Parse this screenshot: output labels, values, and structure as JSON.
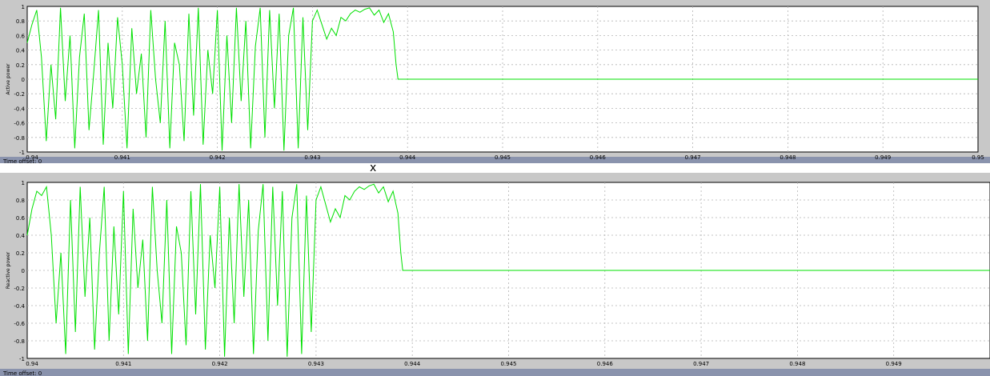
{
  "colors": {
    "frame_bg": "#c8c8c8",
    "axes_bg": "#ffffff",
    "grid": "#b4b4b4",
    "signal": "#00e000",
    "tick_text": "#000000",
    "status_bar": "#8a93ad"
  },
  "center_mark": "x",
  "chart_data": [
    {
      "type": "line",
      "ylabel": "Active power",
      "offset_label": "Time offset: 0",
      "xlim": [
        0.94,
        0.95
      ],
      "ylim": [
        -1,
        1
      ],
      "grid": true,
      "x_ticks": [
        "0.94",
        "0.941",
        "0.942",
        "0.943",
        "0.944",
        "0.945",
        "0.946",
        "0.947",
        "0.948",
        "0.949",
        "0.95"
      ],
      "y_ticks": [
        "1",
        "0.8",
        "0.6",
        "0.4",
        "0.2",
        "0",
        "-0.2",
        "-0.4",
        "-0.6",
        "-0.8",
        "-1"
      ],
      "series": [
        {
          "color": "#00e000",
          "x": [
            0.94,
            0.94005,
            0.9401,
            0.94015,
            0.9402,
            0.94025,
            0.9403,
            0.94035,
            0.9404,
            0.94045,
            0.9405,
            0.94055,
            0.9406,
            0.94065,
            0.9407,
            0.94075,
            0.9408,
            0.94085,
            0.9409,
            0.94095,
            0.941,
            0.94105,
            0.9411,
            0.94115,
            0.9412,
            0.94125,
            0.9413,
            0.94135,
            0.9414,
            0.94145,
            0.9415,
            0.94155,
            0.9416,
            0.94165,
            0.9417,
            0.94175,
            0.9418,
            0.94185,
            0.9419,
            0.94195,
            0.942,
            0.94205,
            0.9421,
            0.94215,
            0.9422,
            0.94225,
            0.9423,
            0.94235,
            0.9424,
            0.94245,
            0.9425,
            0.94255,
            0.9426,
            0.94265,
            0.9427,
            0.94275,
            0.9428,
            0.94285,
            0.9429,
            0.94295,
            0.943,
            0.94305,
            0.9431,
            0.94315,
            0.9432,
            0.94325,
            0.9433,
            0.94335,
            0.9434,
            0.94345,
            0.9435,
            0.94355,
            0.9436,
            0.94365,
            0.9437,
            0.94375,
            0.9438,
            0.94385,
            0.94388,
            0.9439,
            0.945,
            0.946,
            0.947,
            0.948,
            0.949,
            0.95
          ],
          "y": [
            0.5,
            0.75,
            0.95,
            0.3,
            -0.85,
            0.2,
            -0.55,
            0.98,
            -0.3,
            0.6,
            -0.95,
            0.3,
            0.9,
            -0.7,
            0.1,
            0.95,
            -0.9,
            0.5,
            -0.4,
            0.85,
            0.2,
            -0.95,
            0.7,
            -0.2,
            0.35,
            -0.8,
            0.95,
            0.0,
            -0.6,
            0.8,
            -0.95,
            0.5,
            0.2,
            -0.85,
            0.9,
            -0.5,
            0.98,
            -0.9,
            0.4,
            -0.2,
            0.95,
            -0.98,
            0.6,
            -0.6,
            0.98,
            -0.3,
            0.8,
            -0.95,
            0.45,
            0.98,
            -0.8,
            0.95,
            -0.4,
            0.9,
            -0.98,
            0.6,
            0.98,
            -0.95,
            0.85,
            -0.7,
            0.8,
            0.95,
            0.75,
            0.55,
            0.7,
            0.6,
            0.85,
            0.8,
            0.9,
            0.95,
            0.92,
            0.96,
            0.98,
            0.88,
            0.95,
            0.78,
            0.9,
            0.65,
            0.2,
            0.0,
            0.0,
            0.0,
            0.0,
            0.0,
            0.0,
            0.0
          ]
        }
      ]
    },
    {
      "type": "line",
      "ylabel": "Reactive power",
      "offset_label": "Time offset: 0",
      "xlim": [
        0.94,
        0.95
      ],
      "ylim": [
        -1,
        1
      ],
      "grid": true,
      "x_ticks": [
        "0.94",
        "0.941",
        "0.942",
        "0.943",
        "0.944",
        "0.945",
        "0.946",
        "0.947",
        "0.948",
        "0.949"
      ],
      "y_ticks": [
        "1",
        "0.8",
        "0.6",
        "0.4",
        "0.2",
        "0",
        "-0.2",
        "-0.4",
        "-0.6",
        "-0.8",
        "-1"
      ],
      "series": [
        {
          "color": "#00e000",
          "x": [
            0.94,
            0.94005,
            0.9401,
            0.94015,
            0.9402,
            0.94025,
            0.9403,
            0.94035,
            0.9404,
            0.94045,
            0.9405,
            0.94055,
            0.9406,
            0.94065,
            0.9407,
            0.94075,
            0.9408,
            0.94085,
            0.9409,
            0.94095,
            0.941,
            0.94105,
            0.9411,
            0.94115,
            0.9412,
            0.94125,
            0.9413,
            0.94135,
            0.9414,
            0.94145,
            0.9415,
            0.94155,
            0.9416,
            0.94165,
            0.9417,
            0.94175,
            0.9418,
            0.94185,
            0.9419,
            0.94195,
            0.942,
            0.94205,
            0.9421,
            0.94215,
            0.9422,
            0.94225,
            0.9423,
            0.94235,
            0.9424,
            0.94245,
            0.9425,
            0.94255,
            0.9426,
            0.94265,
            0.9427,
            0.94275,
            0.9428,
            0.94285,
            0.9429,
            0.94295,
            0.943,
            0.94305,
            0.9431,
            0.94315,
            0.9432,
            0.94325,
            0.9433,
            0.94335,
            0.9434,
            0.94345,
            0.9435,
            0.94355,
            0.9436,
            0.94365,
            0.9437,
            0.94375,
            0.9438,
            0.94385,
            0.94388,
            0.9439,
            0.945,
            0.946,
            0.947,
            0.948,
            0.949,
            0.95
          ],
          "y": [
            0.4,
            0.7,
            0.9,
            0.85,
            0.95,
            0.4,
            -0.6,
            0.2,
            -0.95,
            0.8,
            -0.7,
            0.95,
            -0.3,
            0.6,
            -0.9,
            0.2,
            0.95,
            -0.8,
            0.5,
            -0.5,
            0.9,
            -0.95,
            0.7,
            -0.2,
            0.35,
            -0.8,
            0.95,
            0.0,
            -0.6,
            0.8,
            -0.95,
            0.5,
            0.2,
            -0.85,
            0.9,
            -0.5,
            0.98,
            -0.9,
            0.4,
            -0.2,
            0.95,
            -0.98,
            0.6,
            -0.6,
            0.98,
            -0.3,
            0.8,
            -0.95,
            0.45,
            0.98,
            -0.8,
            0.95,
            -0.4,
            0.9,
            -0.98,
            0.6,
            0.98,
            -0.95,
            0.85,
            -0.7,
            0.8,
            0.95,
            0.75,
            0.55,
            0.7,
            0.6,
            0.85,
            0.8,
            0.9,
            0.95,
            0.92,
            0.96,
            0.98,
            0.88,
            0.95,
            0.78,
            0.9,
            0.65,
            0.2,
            0.0,
            0.0,
            0.0,
            0.0,
            0.0,
            0.0,
            0.0
          ]
        }
      ]
    }
  ]
}
